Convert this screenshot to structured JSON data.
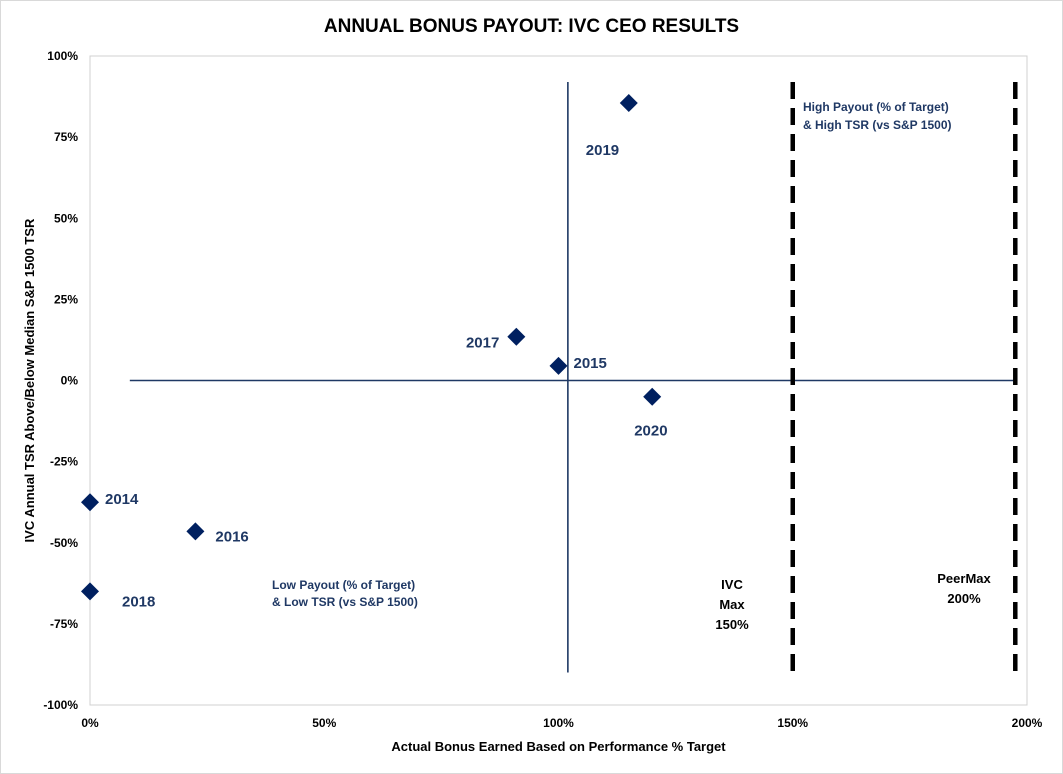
{
  "chart_data": {
    "type": "scatter",
    "title": "ANNUAL BONUS PAYOUT: IVC CEO RESULTS",
    "xlabel": "Actual Bonus Earned Based on Performance % Target",
    "ylabel": "IVC Annual TSR Above/Below Median S&P 1500 TSR",
    "xlim": [
      0,
      200
    ],
    "ylim": [
      -100,
      100
    ],
    "x_ticks": [
      {
        "value": 0,
        "label": "0%"
      },
      {
        "value": 50,
        "label": "50%"
      },
      {
        "value": 100,
        "label": "100%"
      },
      {
        "value": 150,
        "label": "150%"
      },
      {
        "value": 200,
        "label": "200%"
      }
    ],
    "y_ticks": [
      {
        "value": 100,
        "label": "100%"
      },
      {
        "value": 75,
        "label": "75%"
      },
      {
        "value": 50,
        "label": "50%"
      },
      {
        "value": 25,
        "label": "25%"
      },
      {
        "value": 0,
        "label": "0%"
      },
      {
        "value": -25,
        "label": "-25%"
      },
      {
        "value": -50,
        "label": "-50%"
      },
      {
        "value": -75,
        "label": "-75%"
      },
      {
        "value": -100,
        "label": "-100%"
      }
    ],
    "series": [
      {
        "name": "IVC CEO",
        "color": "#002060",
        "marker": "diamond",
        "points": [
          {
            "label": "2014",
            "x": 0,
            "y": -37.5
          },
          {
            "label": "2015",
            "x": 100,
            "y": 4.5
          },
          {
            "label": "2016",
            "x": 22.5,
            "y": -46.5
          },
          {
            "label": "2017",
            "x": 91,
            "y": 13.5
          },
          {
            "label": "2018",
            "x": 0,
            "y": -65
          },
          {
            "label": "2019",
            "x": 115,
            "y": 85.5
          },
          {
            "label": "2020",
            "x": 120,
            "y": -5
          }
        ]
      }
    ],
    "reference_lines": [
      {
        "name": "quadrant-horizontal",
        "orientation": "horizontal",
        "y": 0,
        "x_from": 8.5,
        "x_to": 197.5,
        "style": "solid",
        "color": "#1f3864"
      },
      {
        "name": "quadrant-vertical",
        "orientation": "vertical",
        "x": 102,
        "y_from": -90,
        "y_to": 92,
        "style": "solid",
        "color": "#1f3864"
      },
      {
        "name": "ivc-max",
        "orientation": "vertical",
        "x": 150,
        "y_from": -90,
        "y_to": 92,
        "style": "dashed",
        "color": "#000000"
      },
      {
        "name": "peer-max",
        "orientation": "vertical",
        "x": 197.5,
        "y_from": -90,
        "y_to": 92,
        "style": "dashed",
        "color": "#000000"
      }
    ],
    "annotations": {
      "quadrant_high": [
        "High Payout (% of Target)",
        "& High TSR (vs S&P 1500)"
      ],
      "quadrant_low": [
        "Low Payout (% of Target)",
        "& Low TSR (vs S&P 1500)"
      ],
      "ivc_max": [
        "IVC",
        "Max",
        "150%"
      ],
      "peer_max": [
        "PeerMax",
        "200%"
      ]
    },
    "grid": false,
    "legend": "none"
  }
}
